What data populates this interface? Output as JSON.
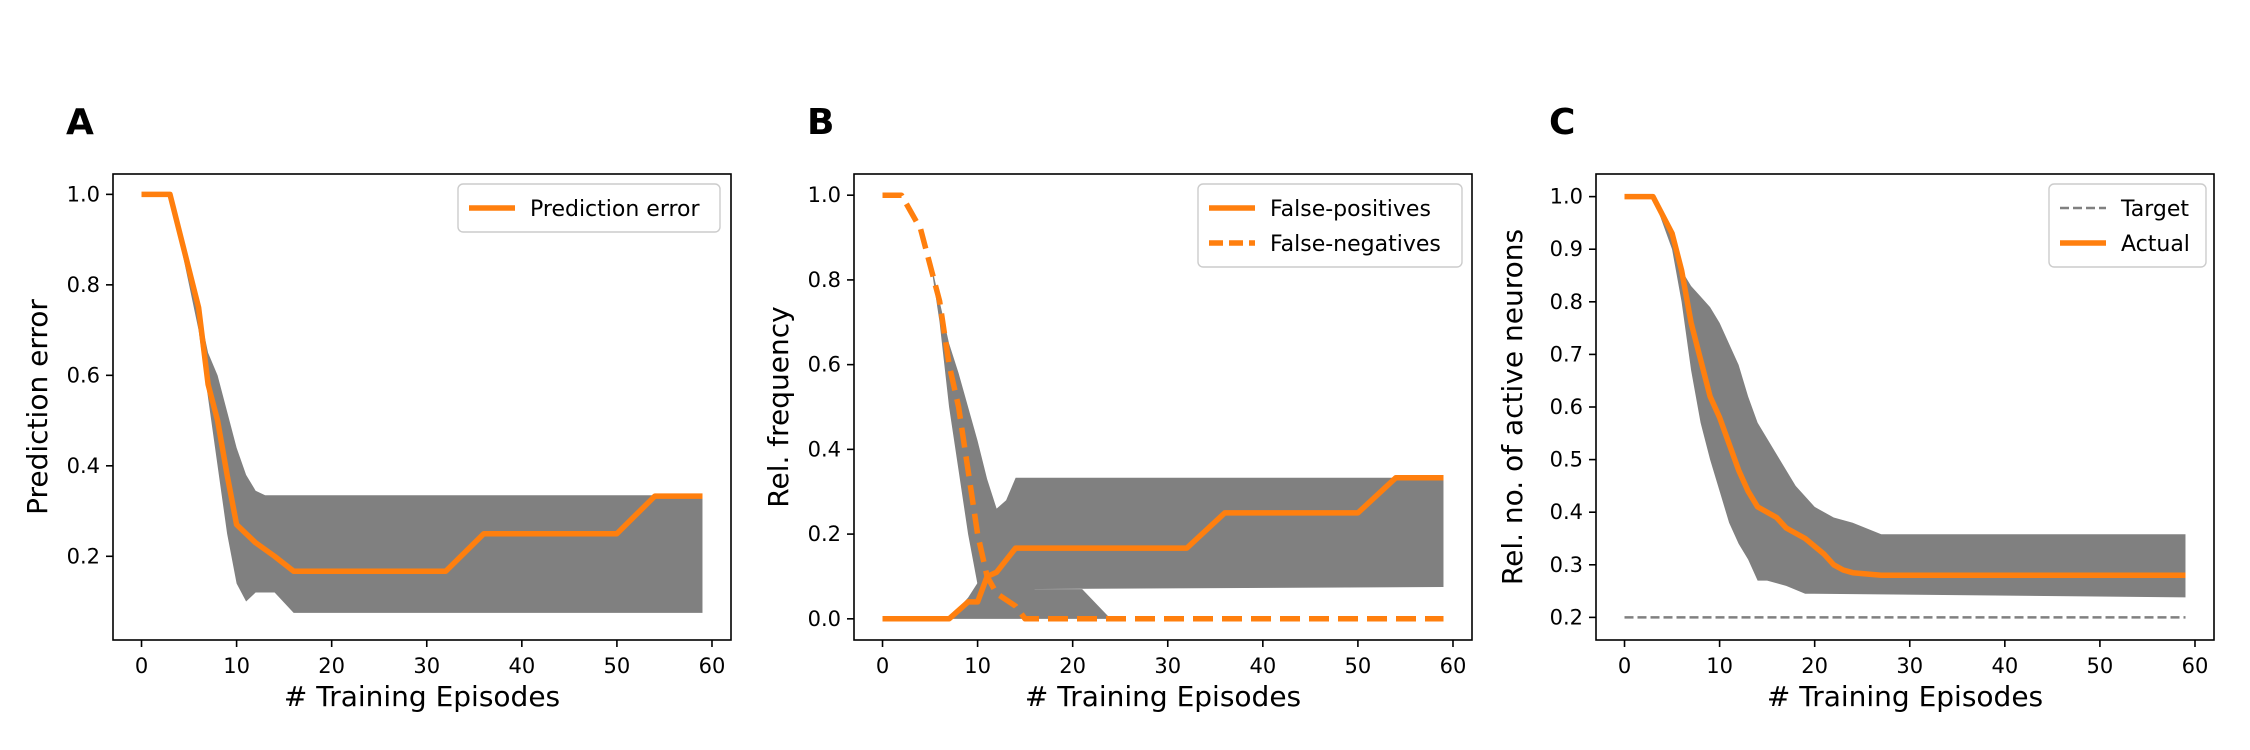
{
  "colors": {
    "orange": "#ff7f0e",
    "band": "#808080",
    "target": "#808080"
  },
  "chart_data": [
    {
      "panel": "A",
      "type": "line",
      "xlabel": "# Training Episodes",
      "ylabel": "Prediction error",
      "xlim": [
        -3,
        62
      ],
      "ylim": [
        0.015,
        1.045
      ],
      "xticks": [
        0,
        10,
        20,
        30,
        40,
        50,
        60
      ],
      "yticks": [
        0.2,
        0.4,
        0.6,
        0.8,
        1.0
      ],
      "ytick_labels": [
        "0.2",
        "0.4",
        "0.6",
        "0.8",
        "1.0"
      ],
      "legend_position": "upper right",
      "band": {
        "upper": [
          [
            0,
            1.0
          ],
          [
            3,
            1.0
          ],
          [
            6,
            0.75
          ],
          [
            7,
            0.65
          ],
          [
            8,
            0.6
          ],
          [
            9,
            0.52
          ],
          [
            10,
            0.44
          ],
          [
            11,
            0.38
          ],
          [
            12,
            0.345
          ],
          [
            13,
            0.335
          ],
          [
            59,
            0.335
          ]
        ],
        "lower": [
          [
            0,
            1.0
          ],
          [
            3,
            1.0
          ],
          [
            6,
            0.7
          ],
          [
            7,
            0.55
          ],
          [
            8,
            0.4
          ],
          [
            9,
            0.25
          ],
          [
            10,
            0.14
          ],
          [
            11,
            0.1
          ],
          [
            12,
            0.12
          ],
          [
            14,
            0.12
          ],
          [
            16,
            0.075
          ],
          [
            59,
            0.075
          ]
        ]
      },
      "series": [
        {
          "name": "Prediction error",
          "style": "solid",
          "points": [
            [
              0,
              1.0
            ],
            [
              3,
              1.0
            ],
            [
              6,
              0.75
            ],
            [
              7,
              0.58
            ],
            [
              8,
              0.5
            ],
            [
              9,
              0.38
            ],
            [
              10,
              0.27
            ],
            [
              12,
              0.23
            ],
            [
              14,
              0.2
            ],
            [
              16,
              0.167
            ],
            [
              32,
              0.167
            ],
            [
              36,
              0.25
            ],
            [
              50,
              0.25
            ],
            [
              54,
              0.333
            ],
            [
              59,
              0.333
            ]
          ]
        }
      ]
    },
    {
      "panel": "B",
      "type": "line",
      "xlabel": "# Training Episodes",
      "ylabel": "Rel. frequency",
      "xlim": [
        -3,
        62
      ],
      "ylim": [
        -0.05,
        1.05
      ],
      "xticks": [
        0,
        10,
        20,
        30,
        40,
        50,
        60
      ],
      "yticks": [
        0.0,
        0.2,
        0.4,
        0.6,
        0.8,
        1.0
      ],
      "ytick_labels": [
        "0.0",
        "0.2",
        "0.4",
        "0.6",
        "0.8",
        "1.0"
      ],
      "legend_position": "upper right",
      "bands": [
        {
          "upper": [
            [
              0,
              1.0
            ],
            [
              3,
              1.0
            ],
            [
              5,
              0.85
            ],
            [
              6,
              0.75
            ],
            [
              7,
              0.65
            ],
            [
              8,
              0.58
            ],
            [
              9,
              0.5
            ],
            [
              10,
              0.42
            ],
            [
              11,
              0.33
            ],
            [
              12,
              0.26
            ],
            [
              13,
              0.28
            ],
            [
              14,
              0.333
            ],
            [
              59,
              0.333
            ]
          ],
          "lower": [
            [
              0,
              1.0
            ],
            [
              3,
              1.0
            ],
            [
              5,
              0.85
            ],
            [
              6,
              0.7
            ],
            [
              7,
              0.5
            ],
            [
              8,
              0.35
            ],
            [
              9,
              0.2
            ],
            [
              10,
              0.08
            ],
            [
              11,
              0.06
            ],
            [
              12,
              0.08
            ],
            [
              13,
              0.12
            ],
            [
              14,
              0.07
            ],
            [
              59,
              0.075
            ]
          ]
        },
        {
          "upper": [
            [
              7,
              0.0
            ],
            [
              9,
              0.05
            ],
            [
              11,
              0.12
            ],
            [
              13,
              0.16
            ],
            [
              15,
              0.1
            ],
            [
              16,
              0.07
            ],
            [
              21,
              0.07
            ],
            [
              24,
              0.0
            ]
          ],
          "lower": [
            [
              7,
              0.0
            ],
            [
              24,
              0.0
            ]
          ]
        }
      ],
      "series": [
        {
          "name": "False-positives",
          "style": "solid",
          "points": [
            [
              0,
              0.0
            ],
            [
              7,
              0.0
            ],
            [
              9,
              0.04
            ],
            [
              10,
              0.04
            ],
            [
              11,
              0.1
            ],
            [
              12,
              0.11
            ],
            [
              14,
              0.167
            ],
            [
              32,
              0.167
            ],
            [
              36,
              0.25
            ],
            [
              50,
              0.25
            ],
            [
              54,
              0.333
            ],
            [
              59,
              0.333
            ]
          ]
        },
        {
          "name": "False-negatives",
          "style": "dashed",
          "points": [
            [
              0,
              1.0
            ],
            [
              2,
              1.0
            ],
            [
              4,
              0.92
            ],
            [
              6,
              0.75
            ],
            [
              7,
              0.6
            ],
            [
              8,
              0.5
            ],
            [
              9,
              0.35
            ],
            [
              10,
              0.2
            ],
            [
              11,
              0.1
            ],
            [
              12,
              0.06
            ],
            [
              14,
              0.03
            ],
            [
              15,
              0.0
            ],
            [
              59,
              0.0
            ]
          ]
        }
      ]
    },
    {
      "panel": "C",
      "type": "line",
      "xlabel": "# Training Episodes",
      "ylabel": "Rel. no. of active neurons",
      "xlim": [
        -3,
        62
      ],
      "ylim": [
        0.157,
        1.043
      ],
      "xticks": [
        0,
        10,
        20,
        30,
        40,
        50,
        60
      ],
      "yticks": [
        0.2,
        0.3,
        0.4,
        0.5,
        0.6,
        0.7,
        0.8,
        0.9,
        1.0
      ],
      "ytick_labels": [
        "0.2",
        "0.3",
        "0.4",
        "0.5",
        "0.6",
        "0.7",
        "0.8",
        "0.9",
        "1.0"
      ],
      "legend_position": "upper right",
      "band": {
        "upper": [
          [
            0,
            1.0
          ],
          [
            3,
            1.0
          ],
          [
            5,
            0.92
          ],
          [
            6,
            0.86
          ],
          [
            7,
            0.83
          ],
          [
            8,
            0.81
          ],
          [
            9,
            0.79
          ],
          [
            10,
            0.76
          ],
          [
            11,
            0.72
          ],
          [
            12,
            0.68
          ],
          [
            13,
            0.62
          ],
          [
            14,
            0.57
          ],
          [
            16,
            0.51
          ],
          [
            18,
            0.45
          ],
          [
            20,
            0.41
          ],
          [
            22,
            0.39
          ],
          [
            24,
            0.38
          ],
          [
            27,
            0.358
          ],
          [
            59,
            0.358
          ]
        ],
        "lower": [
          [
            0,
            1.0
          ],
          [
            3,
            1.0
          ],
          [
            5,
            0.9
          ],
          [
            6,
            0.8
          ],
          [
            7,
            0.67
          ],
          [
            8,
            0.57
          ],
          [
            9,
            0.5
          ],
          [
            10,
            0.44
          ],
          [
            11,
            0.38
          ],
          [
            12,
            0.34
          ],
          [
            13,
            0.31
          ],
          [
            14,
            0.27
          ],
          [
            15,
            0.27
          ],
          [
            17,
            0.26
          ],
          [
            19,
            0.245
          ],
          [
            20,
            0.245
          ],
          [
            59,
            0.238
          ]
        ]
      },
      "series": [
        {
          "name": "Target",
          "style": "dashed-thin",
          "points": [
            [
              0,
              0.2
            ],
            [
              59,
              0.2
            ]
          ]
        },
        {
          "name": "Actual",
          "style": "solid",
          "points": [
            [
              0,
              1.0
            ],
            [
              3,
              1.0
            ],
            [
              5,
              0.93
            ],
            [
              6,
              0.86
            ],
            [
              7,
              0.76
            ],
            [
              8,
              0.69
            ],
            [
              9,
              0.62
            ],
            [
              10,
              0.58
            ],
            [
              11,
              0.53
            ],
            [
              12,
              0.48
            ],
            [
              13,
              0.44
            ],
            [
              14,
              0.41
            ],
            [
              16,
              0.39
            ],
            [
              17,
              0.37
            ],
            [
              19,
              0.35
            ],
            [
              21,
              0.32
            ],
            [
              22,
              0.3
            ],
            [
              23,
              0.29
            ],
            [
              24,
              0.285
            ],
            [
              27,
              0.28
            ],
            [
              59,
              0.28
            ]
          ]
        }
      ]
    }
  ]
}
